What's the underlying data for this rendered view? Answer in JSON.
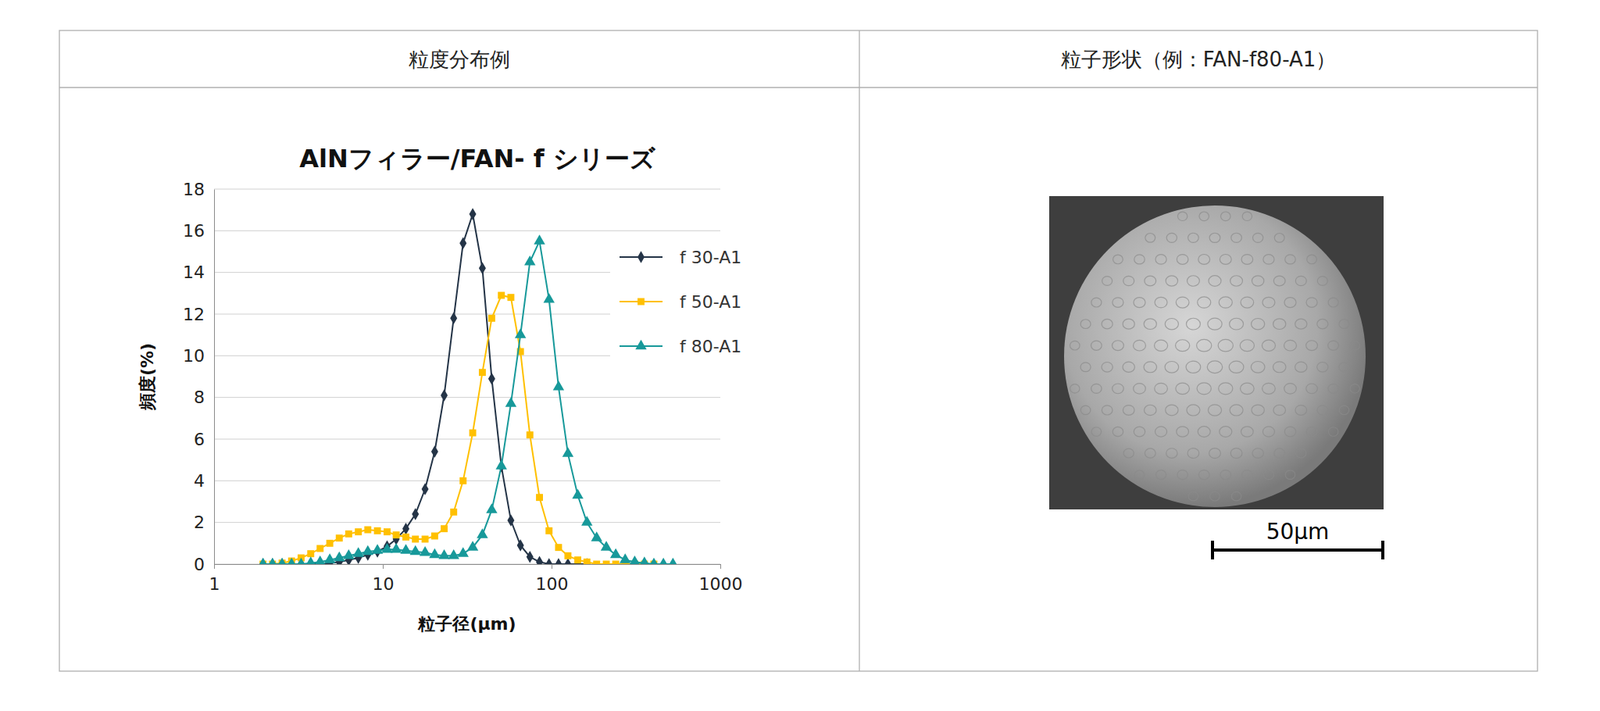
{
  "table": {
    "headers": [
      "粒度分布例",
      "粒子形状（例：FAN-f80-A1）"
    ]
  },
  "image": {
    "scale_label": "50μm"
  },
  "chart_data": {
    "type": "line",
    "title": "AlNフィラー/FAN- f シリーズ",
    "x_label": "粒子径(μm)",
    "y_label": "頻度(%)",
    "x": [
      1.95,
      2.22,
      2.53,
      2.88,
      3.28,
      3.74,
      4.25,
      4.85,
      5.52,
      6.28,
      7.16,
      8.15,
      9.29,
      10.6,
      12.0,
      13.7,
      15.6,
      17.8,
      20.3,
      23.1,
      26.3,
      29.9,
      34.1,
      38.9,
      44.2,
      50.4,
      57.4,
      65.4,
      74.4,
      84.8,
      96.6,
      110,
      125,
      143,
      162,
      185,
      211,
      240,
      273,
      311,
      355,
      404,
      460,
      524
    ],
    "series": [
      {
        "name": "f 30-A1",
        "color": "#243447",
        "marker": "diamond",
        "values": [
          0,
          0,
          0,
          0,
          0,
          0,
          0,
          0.05,
          0.1,
          0.2,
          0.3,
          0.45,
          0.6,
          0.85,
          1.2,
          1.7,
          2.4,
          3.6,
          5.4,
          8.1,
          11.8,
          15.4,
          16.8,
          14.2,
          8.9,
          4.7,
          2.1,
          0.9,
          0.35,
          0.1,
          0,
          0,
          0,
          0,
          0,
          null,
          null,
          null,
          null,
          null,
          null,
          null,
          null,
          null
        ]
      },
      {
        "name": "f 50-A1",
        "color": "#ffc000",
        "marker": "square",
        "values": [
          0,
          0,
          0.05,
          0.15,
          0.3,
          0.5,
          0.75,
          1.0,
          1.25,
          1.45,
          1.55,
          1.65,
          1.6,
          1.55,
          1.4,
          1.3,
          1.2,
          1.2,
          1.35,
          1.7,
          2.5,
          4.0,
          6.3,
          9.2,
          11.8,
          12.9,
          12.8,
          10.2,
          6.2,
          3.2,
          1.6,
          0.8,
          0.4,
          0.2,
          0.1,
          0,
          0,
          0,
          0,
          0,
          0,
          0,
          null,
          null
        ]
      },
      {
        "name": "f 80-A1",
        "color": "#17999a",
        "marker": "triangle",
        "values": [
          0,
          0,
          0,
          0,
          0,
          0.05,
          0.1,
          0.2,
          0.3,
          0.4,
          0.5,
          0.6,
          0.65,
          0.7,
          0.7,
          0.65,
          0.6,
          0.55,
          0.45,
          0.4,
          0.4,
          0.5,
          0.8,
          1.4,
          2.6,
          4.7,
          7.7,
          11.0,
          14.5,
          15.5,
          12.7,
          8.5,
          5.3,
          3.3,
          2.0,
          1.25,
          0.8,
          0.45,
          0.2,
          0.1,
          0.05,
          0,
          0,
          0
        ]
      }
    ],
    "xlim": [
      1,
      1000
    ],
    "xticks": [
      1,
      10,
      100,
      1000
    ],
    "ylim": [
      0,
      18
    ],
    "yticks": [
      0,
      2,
      4,
      6,
      8,
      10,
      12,
      14,
      16,
      18
    ],
    "log": "x",
    "grid": true,
    "legend": "top-right"
  }
}
